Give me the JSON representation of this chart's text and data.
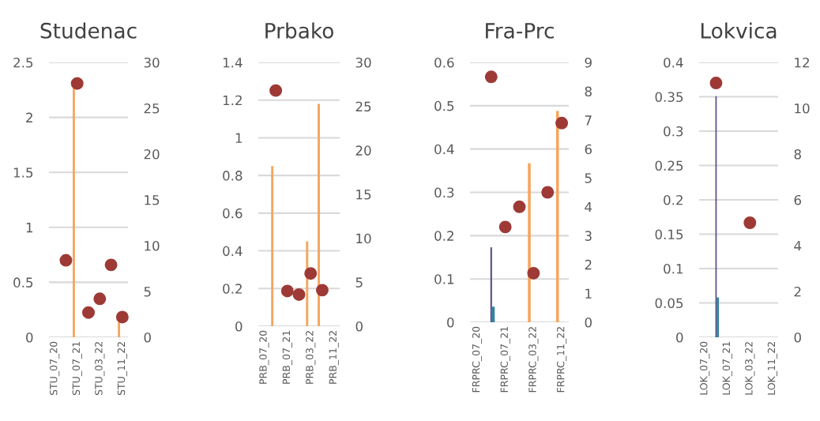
{
  "chart_data": [
    {
      "type": "bar",
      "title": "Studenac",
      "categories": [
        "STU_07_20",
        null,
        "STU_07_21",
        null,
        "STU_03_22",
        null,
        "STU_11_22"
      ],
      "ylim": [
        0,
        2.5
      ],
      "yticks": [
        0,
        0.5,
        1,
        1.5,
        2,
        2.5
      ],
      "y2lim": [
        0,
        30
      ],
      "y2ticks": [
        0,
        5,
        10,
        15,
        20,
        25,
        30
      ],
      "grid": "y",
      "marker": "circle",
      "series": [
        {
          "color": "#f5a55f",
          "values": [
            null,
            null,
            2.28,
            null,
            null,
            null,
            0.14
          ]
        },
        {
          "type": "scatter",
          "axis": "y2",
          "color": "#9e3a36",
          "values": [
            null,
            8.4,
            27.7,
            2.7,
            4.2,
            7.9,
            2.2
          ]
        }
      ]
    },
    {
      "type": "bar",
      "title": "Prbako",
      "categories": [
        "PRB_07_20",
        null,
        "PRB_07_21",
        null,
        "PRB_03_22",
        null,
        "PRB_11_22"
      ],
      "ylim": [
        0,
        1.4
      ],
      "yticks": [
        0,
        0.2,
        0.4,
        0.6,
        0.8,
        1,
        1.2,
        1.4
      ],
      "y2lim": [
        0,
        30
      ],
      "y2ticks": [
        0,
        5,
        10,
        15,
        20,
        25,
        30
      ],
      "grid": "y",
      "marker": "circle",
      "series": [
        {
          "color": "#f5a55f",
          "values": [
            null,
            0.85,
            null,
            null,
            0.45,
            1.18,
            null
          ]
        },
        {
          "type": "scatter",
          "axis": "y2",
          "color": "#9e3a36",
          "values": [
            null,
            26.8,
            4.0,
            3.6,
            6.0,
            4.1,
            null
          ]
        }
      ]
    },
    {
      "type": "bar",
      "title": "Fra-Prc",
      "categories": [
        "FRPRC_07_20",
        null,
        "FRPRC_07_21",
        null,
        "FRPRC_03_22",
        null,
        "FRPRC_11_22"
      ],
      "ylim": [
        0,
        0.6
      ],
      "yticks": [
        0,
        0.1,
        0.2,
        0.3,
        0.4,
        0.5,
        0.6
      ],
      "y2lim": [
        0,
        9
      ],
      "y2ticks": [
        0,
        1,
        2,
        3,
        4,
        5,
        6,
        7,
        8,
        9
      ],
      "grid": "y",
      "marker": "circle",
      "series": [
        {
          "color": "#f5a55f",
          "values": [
            null,
            null,
            null,
            null,
            0.367,
            null,
            0.488
          ]
        },
        {
          "color": "#5f4b8b",
          "values": [
            null,
            0.173,
            null,
            null,
            null,
            null,
            null
          ]
        },
        {
          "color": "#2e86a0",
          "values": [
            null,
            0.036,
            null,
            null,
            null,
            null,
            null
          ]
        },
        {
          "type": "scatter",
          "axis": "y2",
          "color": "#9e3a36",
          "values": [
            null,
            8.5,
            3.3,
            4.0,
            1.7,
            4.5,
            6.9
          ]
        }
      ]
    },
    {
      "type": "bar",
      "title": "Lokvica",
      "categories": [
        "LOK_07_20",
        null,
        "LOK_07_21",
        null,
        "LOK_03_22",
        null,
        "LOK_11_22"
      ],
      "ylim": [
        0,
        0.4
      ],
      "yticks": [
        0,
        0.05,
        0.1,
        0.15,
        0.2,
        0.25,
        0.3,
        0.35,
        0.4
      ],
      "y2lim": [
        0,
        12
      ],
      "y2ticks": [
        0,
        2,
        4,
        6,
        8,
        10,
        12
      ],
      "grid": "y",
      "marker": "circle",
      "series": [
        {
          "color": "#5f4b8b",
          "values": [
            null,
            0.351,
            null,
            null,
            null,
            null,
            null
          ]
        },
        {
          "color": "#2e86a0",
          "values": [
            null,
            0.058,
            null,
            null,
            null,
            null,
            null
          ]
        },
        {
          "type": "scatter",
          "axis": "y2",
          "color": "#9e3a36",
          "values": [
            null,
            11.1,
            null,
            null,
            5.0,
            null,
            null
          ]
        }
      ]
    }
  ]
}
